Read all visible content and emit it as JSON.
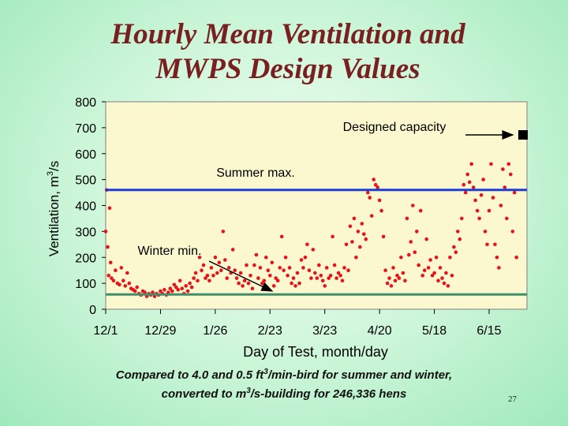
{
  "slide": {
    "title_line1": "Hourly Mean Ventilation and",
    "title_line2": "MWPS Design Values",
    "caption_line1": "Compared to 4.0 and 0.5 ft3/min-bird for summer and winter,",
    "caption_line2": "converted to m3/s-building for 246,336 hens",
    "page_number": "27"
  },
  "chart_data": {
    "type": "scatter",
    "title": "Hourly Mean Ventilation and MWPS Design Values",
    "xlabel": "Day of Test, month/day",
    "ylabel": "Ventilation, m3/s",
    "ylim": [
      0,
      800
    ],
    "y_ticks": [
      0,
      100,
      200,
      300,
      400,
      500,
      600,
      700,
      800
    ],
    "x_tick_labels": [
      "12/1",
      "12/29",
      "1/26",
      "2/23",
      "3/23",
      "4/20",
      "5/18",
      "6/15"
    ],
    "x_day_range": [
      0,
      196
    ],
    "x_tick_days": [
      0,
      28,
      56,
      84,
      112,
      140,
      168,
      196
    ],
    "grid": false,
    "series": [
      {
        "name": "",
        "type": "scatter",
        "color": "#e8131a",
        "points": [
          [
            0,
            300
          ],
          [
            0.5,
            460
          ],
          [
            1,
            240
          ],
          [
            1.5,
            130
          ],
          [
            2,
            390
          ],
          [
            2.5,
            180
          ],
          [
            3,
            120
          ],
          [
            4,
            110
          ],
          [
            5,
            150
          ],
          [
            6,
            100
          ],
          [
            7,
            95
          ],
          [
            8,
            160
          ],
          [
            9,
            110
          ],
          [
            10,
            90
          ],
          [
            11,
            140
          ],
          [
            12,
            100
          ],
          [
            13,
            80
          ],
          [
            14,
            75
          ],
          [
            15,
            70
          ],
          [
            16,
            85
          ],
          [
            17,
            60
          ],
          [
            18,
            55
          ],
          [
            19,
            70
          ],
          [
            20,
            65
          ],
          [
            21,
            50
          ],
          [
            22,
            60
          ],
          [
            23,
            55
          ],
          [
            24,
            65
          ],
          [
            25,
            50
          ],
          [
            26,
            60
          ],
          [
            27,
            55
          ],
          [
            28,
            70
          ],
          [
            29,
            60
          ],
          [
            30,
            75
          ],
          [
            31,
            55
          ],
          [
            32,
            65
          ],
          [
            33,
            80
          ],
          [
            34,
            70
          ],
          [
            35,
            95
          ],
          [
            36,
            85
          ],
          [
            37,
            75
          ],
          [
            38,
            110
          ],
          [
            39,
            80
          ],
          [
            40,
            60
          ],
          [
            41,
            90
          ],
          [
            42,
            70
          ],
          [
            43,
            100
          ],
          [
            44,
            85
          ],
          [
            45,
            120
          ],
          [
            46,
            140
          ],
          [
            47,
            110
          ],
          [
            48,
            200
          ],
          [
            49,
            150
          ],
          [
            50,
            170
          ],
          [
            51,
            120
          ],
          [
            52,
            130
          ],
          [
            53,
            110
          ],
          [
            54,
            160
          ],
          [
            55,
            130
          ],
          [
            56,
            200
          ],
          [
            57,
            140
          ],
          [
            58,
            180
          ],
          [
            59,
            150
          ],
          [
            60,
            300
          ],
          [
            61,
            190
          ],
          [
            62,
            120
          ],
          [
            63,
            160
          ],
          [
            64,
            140
          ],
          [
            65,
            230
          ],
          [
            66,
            150
          ],
          [
            67,
            120
          ],
          [
            68,
            100
          ],
          [
            69,
            140
          ],
          [
            70,
            90
          ],
          [
            71,
            110
          ],
          [
            72,
            170
          ],
          [
            73,
            100
          ],
          [
            74,
            130
          ],
          [
            75,
            80
          ],
          [
            76,
            170
          ],
          [
            77,
            210
          ],
          [
            78,
            120
          ],
          [
            79,
            160
          ],
          [
            80,
            100
          ],
          [
            81,
            110
          ],
          [
            82,
            200
          ],
          [
            83,
            150
          ],
          [
            84,
            130
          ],
          [
            85,
            180
          ],
          [
            86,
            90
          ],
          [
            87,
            120
          ],
          [
            88,
            110
          ],
          [
            89,
            160
          ],
          [
            90,
            280
          ],
          [
            91,
            150
          ],
          [
            92,
            200
          ],
          [
            93,
            130
          ],
          [
            94,
            160
          ],
          [
            95,
            100
          ],
          [
            96,
            120
          ],
          [
            97,
            90
          ],
          [
            98,
            140
          ],
          [
            99,
            100
          ],
          [
            100,
            190
          ],
          [
            101,
            160
          ],
          [
            102,
            200
          ],
          [
            103,
            250
          ],
          [
            104,
            150
          ],
          [
            105,
            120
          ],
          [
            106,
            230
          ],
          [
            107,
            140
          ],
          [
            108,
            120
          ],
          [
            109,
            170
          ],
          [
            110,
            130
          ],
          [
            111,
            110
          ],
          [
            112,
            90
          ],
          [
            113,
            160
          ],
          [
            114,
            120
          ],
          [
            115,
            130
          ],
          [
            116,
            280
          ],
          [
            117,
            170
          ],
          [
            118,
            120
          ],
          [
            119,
            140
          ],
          [
            120,
            130
          ],
          [
            121,
            110
          ],
          [
            122,
            160
          ],
          [
            123,
            250
          ],
          [
            124,
            150
          ],
          [
            125,
            320
          ],
          [
            126,
            260
          ],
          [
            127,
            350
          ],
          [
            128,
            200
          ],
          [
            129,
            300
          ],
          [
            130,
            240
          ],
          [
            131,
            330
          ],
          [
            132,
            290
          ],
          [
            133,
            270
          ],
          [
            134,
            450
          ],
          [
            135,
            430
          ],
          [
            136,
            360
          ],
          [
            137,
            500
          ],
          [
            138,
            480
          ],
          [
            139,
            470
          ],
          [
            140,
            420
          ],
          [
            141,
            380
          ],
          [
            142,
            280
          ],
          [
            143,
            150
          ],
          [
            144,
            100
          ],
          [
            145,
            120
          ],
          [
            146,
            90
          ],
          [
            147,
            160
          ],
          [
            148,
            110
          ],
          [
            149,
            130
          ],
          [
            150,
            120
          ],
          [
            151,
            200
          ],
          [
            152,
            140
          ],
          [
            153,
            110
          ],
          [
            154,
            350
          ],
          [
            155,
            210
          ],
          [
            156,
            260
          ],
          [
            157,
            400
          ],
          [
            158,
            220
          ],
          [
            159,
            300
          ],
          [
            160,
            170
          ],
          [
            161,
            380
          ],
          [
            162,
            130
          ],
          [
            163,
            150
          ],
          [
            164,
            270
          ],
          [
            165,
            160
          ],
          [
            166,
            190
          ],
          [
            167,
            130
          ],
          [
            168,
            140
          ],
          [
            169,
            200
          ],
          [
            170,
            110
          ],
          [
            171,
            160
          ],
          [
            172,
            120
          ],
          [
            173,
            100
          ],
          [
            174,
            140
          ],
          [
            175,
            90
          ],
          [
            176,
            200
          ],
          [
            177,
            130
          ],
          [
            178,
            240
          ],
          [
            179,
            220
          ],
          [
            180,
            300
          ],
          [
            181,
            270
          ],
          [
            182,
            350
          ],
          [
            183,
            480
          ],
          [
            184,
            450
          ],
          [
            185,
            520
          ],
          [
            186,
            490
          ],
          [
            187,
            560
          ],
          [
            188,
            470
          ],
          [
            189,
            420
          ],
          [
            190,
            380
          ],
          [
            191,
            350
          ],
          [
            192,
            440
          ],
          [
            193,
            500
          ],
          [
            194,
            300
          ],
          [
            195,
            250
          ],
          [
            196,
            380
          ],
          [
            197,
            560
          ],
          [
            198,
            430
          ],
          [
            199,
            250
          ],
          [
            200,
            200
          ],
          [
            201,
            160
          ],
          [
            202,
            400
          ],
          [
            203,
            540
          ],
          [
            204,
            470
          ],
          [
            205,
            350
          ],
          [
            206,
            560
          ],
          [
            207,
            520
          ],
          [
            208,
            300
          ],
          [
            209,
            450
          ],
          [
            210,
            200
          ]
        ]
      }
    ],
    "reference_lines": [
      {
        "name": "Summer max.",
        "y": 460,
        "color": "#1c3fd6"
      },
      {
        "name": "Winter min.",
        "y": 57,
        "color": "#3f8f6c"
      }
    ],
    "annotations": [
      {
        "text": "Designed capacity",
        "x": 210,
        "y": 700
      },
      {
        "text": "Summer max.",
        "x": 200,
        "y": 460
      },
      {
        "text": "Winter min.",
        "x": 76,
        "y": 57
      }
    ],
    "designed_capacity_marker": {
      "x": 210,
      "y": 690,
      "color": "#000000"
    }
  }
}
